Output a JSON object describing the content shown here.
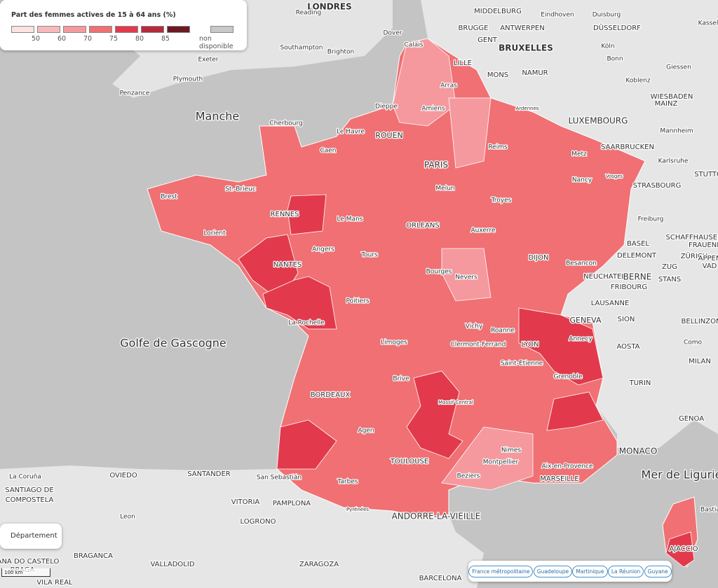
{
  "legend": {
    "title": "Part des femmes actives de 15 à 64 ans (%)",
    "thresholds": [
      50,
      60,
      70,
      75,
      80,
      85
    ],
    "colors": [
      "#fde2e2",
      "#f9b9bc",
      "#f5999e",
      "#f07073",
      "#e23a4c",
      "#b52b3b",
      "#6b1a20"
    ],
    "na_label": "non disponible",
    "na_color": "#c8c8c8"
  },
  "layer_button": "Département",
  "scale": "100 km",
  "territories": [
    "France métropolitaine",
    "Guadeloupe",
    "Martinique",
    "La Réunion",
    "Guyane"
  ],
  "places": [
    "LONDRES",
    "Reading",
    "MIDDELBURG",
    "Eindhoven",
    "Duisburg",
    "Kassel",
    "BRUGGE",
    "ANTWERPEN",
    "DÜSSELDORF",
    "Dover",
    "Calais",
    "GENT",
    "BRUXELLES",
    "Köln",
    "Southampton",
    "Brighton",
    "Exeter",
    "LILLE",
    "Bonn",
    "Giessen",
    "MONS",
    "NAMUR",
    "Plymouth",
    "Arras",
    "Koblenz",
    "Penzance",
    "WIESBADEN",
    "MAINZ",
    "Dieppe",
    "Amiens",
    "Ardennes",
    "Manche",
    "Cherbourg",
    "LUXEMBOURG",
    "Mannheim",
    "Le Havre",
    "ROUEN",
    "SAARBRUCKEN",
    "Reims",
    "Caen",
    "Metz",
    "Karlsruhe",
    "PARIS",
    "STUTTG",
    "Nancy",
    "Vosges",
    "St.-Brieuc",
    "Melun",
    "STRASBOURG",
    "Brest",
    "Troyes",
    "RENNES",
    "Le Mans",
    "ORLEANS",
    "Freiburg",
    "Lorient",
    "Auxerre",
    "SCHAFFHAUSEN",
    "FRAUENF",
    "BASEL",
    "ZÜRICH",
    "Angers",
    "DELEMONT",
    "Tours",
    "NANTES",
    "DIJON",
    "Besancon",
    "ZUG",
    "APPEN",
    "VAD",
    "Bourges",
    "Nevers",
    "NEUCHATEL",
    "BERNE",
    "STANS",
    "FRIBOURG",
    "Poitiers",
    "LAUSANNE",
    "La Rochelle",
    "GENEVA",
    "SION",
    "Vichy",
    "Roanne",
    "BELLINZON",
    "Annecy",
    "Limoges",
    "Clermont-Ferrand",
    "LYON",
    "AOSTA",
    "Como",
    "MILAN",
    "Golfe de Gascogne",
    "Saint-Etienne",
    "Grenoble",
    "Brive",
    "TURIN",
    "Massif Central",
    "BORDEAUX",
    "GENOA",
    "Agen",
    "Nimes",
    "MONACO",
    "Montpellier",
    "TOULOUSE",
    "Aix-en-Provence",
    "Mer de Ligurie",
    "La Coruña",
    "OVIEDO",
    "SANTANDER",
    "San Sebastián",
    "Beziers",
    "MARSEILLE",
    "Tarbes",
    "SANTIAGO DE",
    "COMPOSTELA",
    "VITORIA",
    "PAMPLONA",
    "Pyrénées",
    "Bastia",
    "Leon",
    "LOGRONO",
    "ANDORRE-LA-VIEILLE",
    "AJACCIO",
    "BRAGANCA",
    "ANA DO CASTELO",
    "BRAGA",
    "VALLADOLID",
    "ZARAGOZA",
    "VILA REAL",
    "BARCELONA"
  ]
}
